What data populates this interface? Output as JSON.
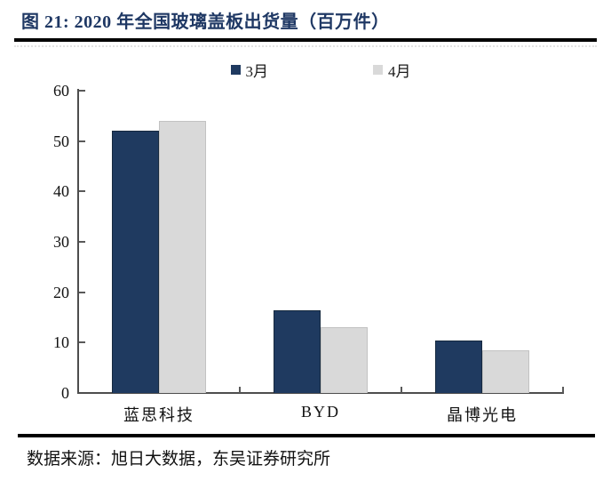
{
  "page": {
    "title": "图 21:  2020 年全国玻璃盖板出货量（百万件）",
    "source": "数据来源：旭日大数据，东吴证券研究所"
  },
  "colors": {
    "title_text": "#1F3864",
    "axis": "#4d4d4d",
    "divider": "#000000"
  },
  "chart_data": {
    "type": "bar",
    "title": "2020 年全国玻璃盖板出货量（百万件）",
    "categories": [
      "蓝思科技",
      "BYD",
      "晶博光电"
    ],
    "series": [
      {
        "name": "3月",
        "color": "#1F3A60",
        "border": "#16293F",
        "values": [
          52,
          16.5,
          10.5
        ]
      },
      {
        "name": "4月",
        "color": "#D9D9D9",
        "border": "#C2C2C2",
        "values": [
          54,
          13,
          8.5
        ]
      }
    ],
    "xlabel": "",
    "ylabel": "",
    "ylim": [
      0,
      60
    ],
    "yticks": [
      0,
      10,
      20,
      30,
      40,
      50,
      60
    ],
    "grid": false,
    "legend_position": "top",
    "tick_direction": "in"
  }
}
